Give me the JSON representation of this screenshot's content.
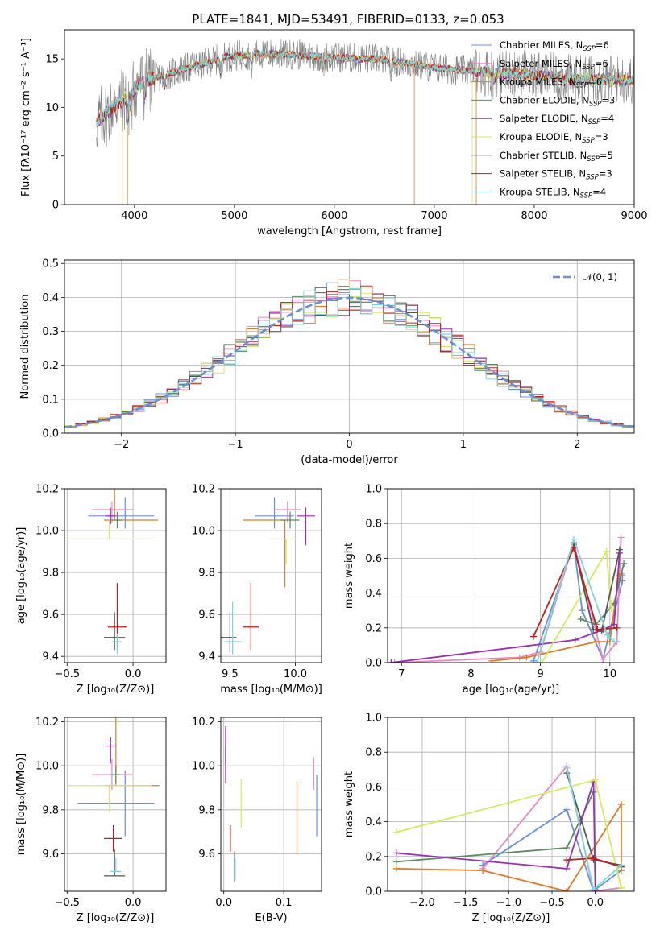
{
  "figure": {
    "title": "PLATE=1841, MJD=53491, FIBERID=0133, z=0.053"
  },
  "colors": {
    "chabrier_miles": "#6a8fd8",
    "salpeter_miles": "#e887c0",
    "kroupa_miles": "#e07a27",
    "chabrier_elodie": "#5a8a62",
    "salpeter_elodie": "#9a2fb0",
    "kroupa_elodie": "#d6ea5a",
    "chabrier_stelib": "#555555",
    "salpeter_stelib": "#c41a1a",
    "kroupa_stelib": "#7ad8dc",
    "grid": "#b0b0b0"
  },
  "chart_data": [
    {
      "id": "spectrum",
      "type": "line",
      "title": "PLATE=1841, MJD=53491, FIBERID=0133, z=0.053",
      "xlabel": "wavelength [Angstrom, rest frame]",
      "ylabel": "Flux [fλ10⁻¹⁷ erg cm⁻² s⁻¹ A⁻¹]",
      "xlim": [
        3300,
        9000
      ],
      "ylim": [
        0,
        18
      ],
      "xticks": [
        4000,
        5000,
        6000,
        7000,
        8000,
        9000
      ],
      "yticks": [
        0,
        5,
        10,
        15
      ],
      "grid": false,
      "legend_position": "top-right",
      "series": [
        {
          "name": "Chabrier MILES, N",
          "sub": "SSP",
          "suffix": "=6",
          "key": "chabrier_miles"
        },
        {
          "name": "Salpeter MILES, N",
          "sub": "SSP",
          "suffix": "=6",
          "key": "salpeter_miles"
        },
        {
          "name": "Kroupa MILES, N",
          "sub": "SSP",
          "suffix": "=6",
          "key": "kroupa_miles"
        },
        {
          "name": "Chabrier ELODIE, N",
          "sub": "SSP",
          "suffix": "=3",
          "key": "chabrier_elodie"
        },
        {
          "name": "Salpeter ELODIE, N",
          "sub": "SSP",
          "suffix": "=4",
          "key": "salpeter_elodie"
        },
        {
          "name": "Kroupa ELODIE, N",
          "sub": "SSP",
          "suffix": "=3",
          "key": "kroupa_elodie"
        },
        {
          "name": "Chabrier STELIB, N",
          "sub": "SSP",
          "suffix": "=5",
          "key": "chabrier_stelib"
        },
        {
          "name": "Salpeter STELIB, N",
          "sub": "SSP",
          "suffix": "=3",
          "key": "salpeter_stelib"
        },
        {
          "name": "Kroupa STELIB, N",
          "sub": "SSP",
          "suffix": "=4",
          "key": "kroupa_stelib"
        }
      ],
      "continuum": {
        "x": [
          3620,
          3700,
          3800,
          3900,
          4000,
          4100,
          4300,
          4500,
          4700,
          4900,
          5100,
          5300,
          5500,
          5800,
          6100,
          6400,
          6700,
          7000,
          7300,
          7600,
          8000,
          8400,
          8800,
          9000
        ],
        "y": [
          8.5,
          9.2,
          10.2,
          10.8,
          12.0,
          12.8,
          13.3,
          14.0,
          14.5,
          15.2,
          15.4,
          15.5,
          15.5,
          15.3,
          15.1,
          15.0,
          14.6,
          14.1,
          13.8,
          13.6,
          13.4,
          12.9,
          12.9,
          12.8
        ]
      }
    },
    {
      "id": "residuals",
      "type": "bar",
      "xlabel": "(data-model)/error",
      "ylabel": "Normed distribution",
      "xlim": [
        -2.5,
        2.5
      ],
      "ylim": [
        0,
        0.51
      ],
      "xticks": [
        -2,
        -1,
        0,
        1,
        2
      ],
      "yticks": [
        0.0,
        0.1,
        0.2,
        0.3,
        0.4,
        0.5
      ],
      "grid": true,
      "legend_position": "top-right",
      "reference": {
        "name": "𝒩(0, 1)",
        "mean": 0,
        "sigma": 1
      },
      "bin_width": 0.1
    },
    {
      "id": "age_vs_Z",
      "type": "scatter",
      "xlabel": "Z [log₁₀(Z/Z⊙)]",
      "ylabel": "age  [log₁₀(age/yr)]",
      "xlim": [
        -0.52,
        0.25
      ],
      "ylim": [
        9.37,
        10.2
      ],
      "xticks": [
        -0.5,
        0.0
      ],
      "yticks": [
        9.4,
        9.6,
        9.8,
        10.0,
        10.2
      ],
      "grid": true,
      "points": [
        {
          "key": "chabrier_miles",
          "x": -0.06,
          "y": 10.07,
          "xerr": [
            0.28,
            0.22
          ],
          "yerr": [
            0.06,
            0.09
          ]
        },
        {
          "key": "salpeter_miles",
          "x": -0.16,
          "y": 10.1,
          "xerr": [
            0.15,
            0.16
          ],
          "yerr": [
            0.06,
            0.04
          ]
        },
        {
          "key": "kroupa_miles",
          "x": -0.14,
          "y": 10.05,
          "xerr": [
            0.08,
            0.33
          ],
          "yerr": [
            0.0,
            0.32
          ]
        },
        {
          "key": "chabrier_elodie",
          "x": -0.12,
          "y": 10.05,
          "xerr": [
            0.04,
            0.04
          ],
          "yerr": [
            0.04,
            0.04
          ]
        },
        {
          "key": "salpeter_elodie",
          "x": -0.17,
          "y": 10.07,
          "xerr": [
            0.04,
            0.04
          ],
          "yerr": [
            0.04,
            0.04
          ]
        },
        {
          "key": "kroupa_elodie",
          "x": -0.18,
          "y": 9.96,
          "xerr": [
            0.32,
            0.32
          ],
          "yerr": [
            0.0,
            0.09
          ]
        },
        {
          "key": "chabrier_stelib",
          "x": -0.14,
          "y": 9.49,
          "xerr": [
            0.08,
            0.08
          ],
          "yerr": [
            0.06,
            0.12
          ]
        },
        {
          "key": "salpeter_stelib",
          "x": -0.12,
          "y": 9.54,
          "xerr": [
            0.07,
            0.07
          ],
          "yerr": [
            0.11,
            0.21
          ]
        },
        {
          "key": "kroupa_stelib",
          "x": -0.12,
          "y": 9.47,
          "xerr": [
            0.04,
            0.04
          ],
          "yerr": [
            0.06,
            0.04
          ]
        }
      ]
    },
    {
      "id": "age_vs_mass",
      "type": "scatter",
      "xlabel": "mass [log₁₀(M/M⊙)]",
      "ylabel": "",
      "xlim": [
        9.43,
        10.2
      ],
      "ylim": [
        9.37,
        10.2
      ],
      "xticks": [
        9.5,
        10.0
      ],
      "yticks": [
        9.4,
        9.6,
        9.8,
        10.0,
        10.2
      ],
      "grid": true,
      "points": [
        {
          "key": "chabrier_miles",
          "x": 9.84,
          "y": 10.07,
          "xerr": [
            0.15,
            0.15
          ],
          "yerr": [
            0.06,
            0.09
          ]
        },
        {
          "key": "salpeter_miles",
          "x": 9.94,
          "y": 10.1,
          "xerr": [
            0.1,
            0.1
          ],
          "yerr": [
            0.06,
            0.04
          ]
        },
        {
          "key": "kroupa_miles",
          "x": 9.92,
          "y": 10.05,
          "xerr": [
            0.32,
            0.0
          ],
          "yerr": [
            0.32,
            0.0
          ]
        },
        {
          "key": "chabrier_elodie",
          "x": 9.96,
          "y": 10.05,
          "xerr": [
            0.07,
            0.07
          ],
          "yerr": [
            0.04,
            0.04
          ]
        },
        {
          "key": "salpeter_elodie",
          "x": 10.08,
          "y": 10.07,
          "xerr": [
            0.07,
            0.07
          ],
          "yerr": [
            0.14,
            0.04
          ]
        },
        {
          "key": "kroupa_elodie",
          "x": 9.93,
          "y": 9.96,
          "xerr": [
            0.12,
            0.08
          ],
          "yerr": [
            0.12,
            0.0
          ]
        },
        {
          "key": "chabrier_stelib",
          "x": 9.5,
          "y": 9.49,
          "xerr": [
            0.07,
            0.05
          ],
          "yerr": [
            0.07,
            0.12
          ]
        },
        {
          "key": "salpeter_stelib",
          "x": 9.66,
          "y": 9.54,
          "xerr": [
            0.06,
            0.06
          ],
          "yerr": [
            0.11,
            0.21
          ]
        },
        {
          "key": "kroupa_stelib",
          "x": 9.52,
          "y": 9.47,
          "xerr": [
            0.07,
            0.07
          ],
          "yerr": [
            0.06,
            0.19
          ]
        }
      ]
    },
    {
      "id": "weight_vs_age",
      "type": "line",
      "xlabel": "age  [log₁₀(age/yr)]",
      "ylabel": "mass weight",
      "xlim": [
        6.8,
        10.35
      ],
      "ylim": [
        0,
        1.0
      ],
      "xticks": [
        7,
        8,
        9,
        10
      ],
      "yticks": [
        0.0,
        0.2,
        0.4,
        0.6,
        0.8,
        1.0
      ],
      "grid": true,
      "series": [
        {
          "key": "chabrier_miles",
          "x": [
            8.9,
            9.48,
            9.6,
            9.9,
            10.18,
            10.18
          ],
          "y": [
            0.01,
            0.68,
            0.3,
            0.02,
            0.47,
            0.5
          ]
        },
        {
          "key": "salpeter_miles",
          "x": [
            6.9,
            8.7,
            9.0,
            9.48,
            9.9,
            10.1,
            10.16
          ],
          "y": [
            0.0,
            0.03,
            0.06,
            0.69,
            0.02,
            0.12,
            0.72
          ]
        },
        {
          "key": "kroupa_miles",
          "x": [
            8.3,
            8.8,
            9.8,
            10.0,
            10.13,
            10.16
          ],
          "y": [
            0.01,
            0.03,
            0.12,
            0.12,
            0.5,
            0.51
          ]
        },
        {
          "key": "chabrier_elodie",
          "x": [
            9.58,
            9.8,
            10.06,
            10.2
          ],
          "y": [
            0.25,
            0.22,
            0.34,
            0.57
          ]
        },
        {
          "key": "salpeter_elodie",
          "x": [
            6.85,
            9.5,
            9.9,
            10.06,
            10.14
          ],
          "y": [
            0.0,
            0.13,
            0.19,
            0.22,
            0.63
          ]
        },
        {
          "key": "kroupa_elodie",
          "x": [
            9.02,
            9.95,
            10.02
          ],
          "y": [
            0.0,
            0.64,
            0.31
          ]
        },
        {
          "key": "chabrier_stelib",
          "x": [
            9.48,
            9.76,
            9.88,
            10.14
          ],
          "y": [
            0.68,
            0.19,
            0.18,
            0.65
          ]
        },
        {
          "key": "salpeter_stelib",
          "x": [
            8.9,
            9.48,
            9.82,
            10.1
          ],
          "y": [
            0.15,
            0.66,
            0.19,
            0.2
          ]
        },
        {
          "key": "kroupa_stelib",
          "x": [
            8.95,
            9.48,
            9.96,
            10.06
          ],
          "y": [
            0.0,
            0.71,
            0.16,
            0.12
          ]
        }
      ]
    },
    {
      "id": "mass_vs_Z",
      "type": "scatter",
      "xlabel": "Z [log₁₀(Z/Z⊙)]",
      "ylabel": "mass [log₁₀(M/M⊙)]",
      "xlim": [
        -0.52,
        0.25
      ],
      "ylim": [
        9.43,
        10.22
      ],
      "xticks": [
        -0.5,
        0.0
      ],
      "yticks": [
        9.6,
        9.8,
        10.0,
        10.2
      ],
      "grid": true,
      "points": [
        {
          "key": "chabrier_miles",
          "x": -0.06,
          "y": 9.83,
          "xerr": [
            0.36,
            0.22
          ],
          "yerr": [
            0.15,
            0.15
          ]
        },
        {
          "key": "salpeter_miles",
          "x": -0.16,
          "y": 9.96,
          "xerr": [
            0.15,
            0.16
          ],
          "yerr": [
            0.07,
            0.07
          ]
        },
        {
          "key": "kroupa_miles",
          "x": -0.13,
          "y": 9.91,
          "xerr": [
            0.08,
            0.33
          ],
          "yerr": [
            0.0,
            0.32
          ]
        },
        {
          "key": "chabrier_elodie",
          "x": -0.13,
          "y": 9.96,
          "xerr": [
            0.04,
            0.04
          ],
          "yerr": [
            0.04,
            0.04
          ]
        },
        {
          "key": "salpeter_elodie",
          "x": -0.17,
          "y": 10.09,
          "xerr": [
            0.04,
            0.04
          ],
          "yerr": [
            0.08,
            0.04
          ]
        },
        {
          "key": "kroupa_elodie",
          "x": -0.18,
          "y": 9.91,
          "xerr": [
            0.32,
            0.32
          ],
          "yerr": [
            0.12,
            0.0
          ]
        },
        {
          "key": "chabrier_stelib",
          "x": -0.14,
          "y": 9.5,
          "xerr": [
            0.08,
            0.08
          ],
          "yerr": [
            0.0,
            0.12
          ]
        },
        {
          "key": "salpeter_stelib",
          "x": -0.15,
          "y": 9.67,
          "xerr": [
            0.07,
            0.07
          ],
          "yerr": [
            0.06,
            0.06
          ]
        },
        {
          "key": "kroupa_stelib",
          "x": -0.13,
          "y": 9.52,
          "xerr": [
            0.04,
            0.04
          ],
          "yerr": [
            0.0,
            0.06
          ]
        }
      ]
    },
    {
      "id": "mass_vs_ebv",
      "type": "scatter",
      "xlabel": "E(B-V)",
      "ylabel": "",
      "xlim": [
        -0.005,
        0.163
      ],
      "ylim": [
        9.43,
        10.22
      ],
      "xticks": [
        0.0,
        0.1
      ],
      "yticks": [
        9.6,
        9.8,
        10.0,
        10.2
      ],
      "grid": true,
      "points": [
        {
          "key": "chabrier_miles",
          "x": 0.155,
          "y": 9.83,
          "xerr": [
            0,
            0
          ],
          "yerr": [
            0.15,
            0.13
          ]
        },
        {
          "key": "salpeter_miles",
          "x": 0.15,
          "y": 9.96,
          "xerr": [
            0,
            0
          ],
          "yerr": [
            0.07,
            0.08
          ]
        },
        {
          "key": "kroupa_miles",
          "x": 0.122,
          "y": 9.76,
          "xerr": [
            0,
            0
          ],
          "yerr": [
            0.16,
            0.17
          ]
        },
        {
          "key": "chabrier_elodie",
          "x": 0.003,
          "y": 10.05,
          "xerr": [
            0,
            0
          ],
          "yerr": [
            0.04,
            0.04
          ]
        },
        {
          "key": "salpeter_elodie",
          "x": 0.003,
          "y": 10.05,
          "xerr": [
            0,
            0
          ],
          "yerr": [
            0.13,
            0.13
          ]
        },
        {
          "key": "kroupa_elodie",
          "x": 0.029,
          "y": 9.83,
          "xerr": [
            0,
            0
          ],
          "yerr": [
            0.11,
            0.11
          ]
        },
        {
          "key": "chabrier_stelib",
          "x": 0.018,
          "y": 9.53,
          "xerr": [
            0,
            0
          ],
          "yerr": [
            0.06,
            0.08
          ]
        },
        {
          "key": "salpeter_stelib",
          "x": 0.011,
          "y": 9.67,
          "xerr": [
            0,
            0
          ],
          "yerr": [
            0.06,
            0.06
          ]
        },
        {
          "key": "kroupa_stelib",
          "x": 0.019,
          "y": 9.53,
          "xerr": [
            0,
            0
          ],
          "yerr": [
            0.05,
            0.05
          ]
        }
      ]
    },
    {
      "id": "weight_vs_Z",
      "type": "line",
      "xlabel": "Z [log₁₀(Z/Z⊙)]",
      "ylabel": "mass weight",
      "xlim": [
        -2.4,
        0.45
      ],
      "ylim": [
        0,
        1.0
      ],
      "xticks": [
        -2.0,
        -1.5,
        -1.0,
        -0.5,
        0.0
      ],
      "yticks": [
        0.0,
        0.2,
        0.4,
        0.6,
        0.8,
        1.0
      ],
      "grid": true,
      "series": [
        {
          "key": "chabrier_miles",
          "x": [
            -1.3,
            -0.33,
            -0.02,
            0.0,
            0.3
          ],
          "y": [
            0.15,
            0.47,
            0.0,
            0.01,
            0.12
          ]
        },
        {
          "key": "salpeter_miles",
          "x": [
            -1.3,
            -0.33,
            -0.02,
            0.3
          ],
          "y": [
            0.13,
            0.72,
            0.0,
            0.02
          ]
        },
        {
          "key": "kroupa_miles",
          "x": [
            -2.3,
            -1.3,
            -0.33,
            0.3,
            0.3
          ],
          "y": [
            0.13,
            0.12,
            0.0,
            0.5,
            0.12
          ]
        },
        {
          "key": "chabrier_elodie",
          "x": [
            -2.3,
            -0.33,
            -0.02
          ],
          "y": [
            0.17,
            0.25,
            0.57
          ]
        },
        {
          "key": "salpeter_elodie",
          "x": [
            -2.3,
            -0.33,
            -0.02,
            0.0
          ],
          "y": [
            0.22,
            0.13,
            0.63,
            0.0
          ]
        },
        {
          "key": "kroupa_elodie",
          "x": [
            -2.3,
            0.0,
            0.3
          ],
          "y": [
            0.34,
            0.64,
            0.02
          ]
        },
        {
          "key": "chabrier_stelib",
          "x": [
            -0.33,
            -0.02,
            0.3
          ],
          "y": [
            0.68,
            0.18,
            0.15
          ]
        },
        {
          "key": "salpeter_stelib",
          "x": [
            -0.33,
            -0.02,
            0.3
          ],
          "y": [
            0.18,
            0.19,
            0.14
          ]
        },
        {
          "key": "kroupa_stelib",
          "x": [
            -0.33,
            -0.02,
            0.3
          ],
          "y": [
            0.71,
            0.01,
            0.15
          ]
        }
      ]
    }
  ]
}
